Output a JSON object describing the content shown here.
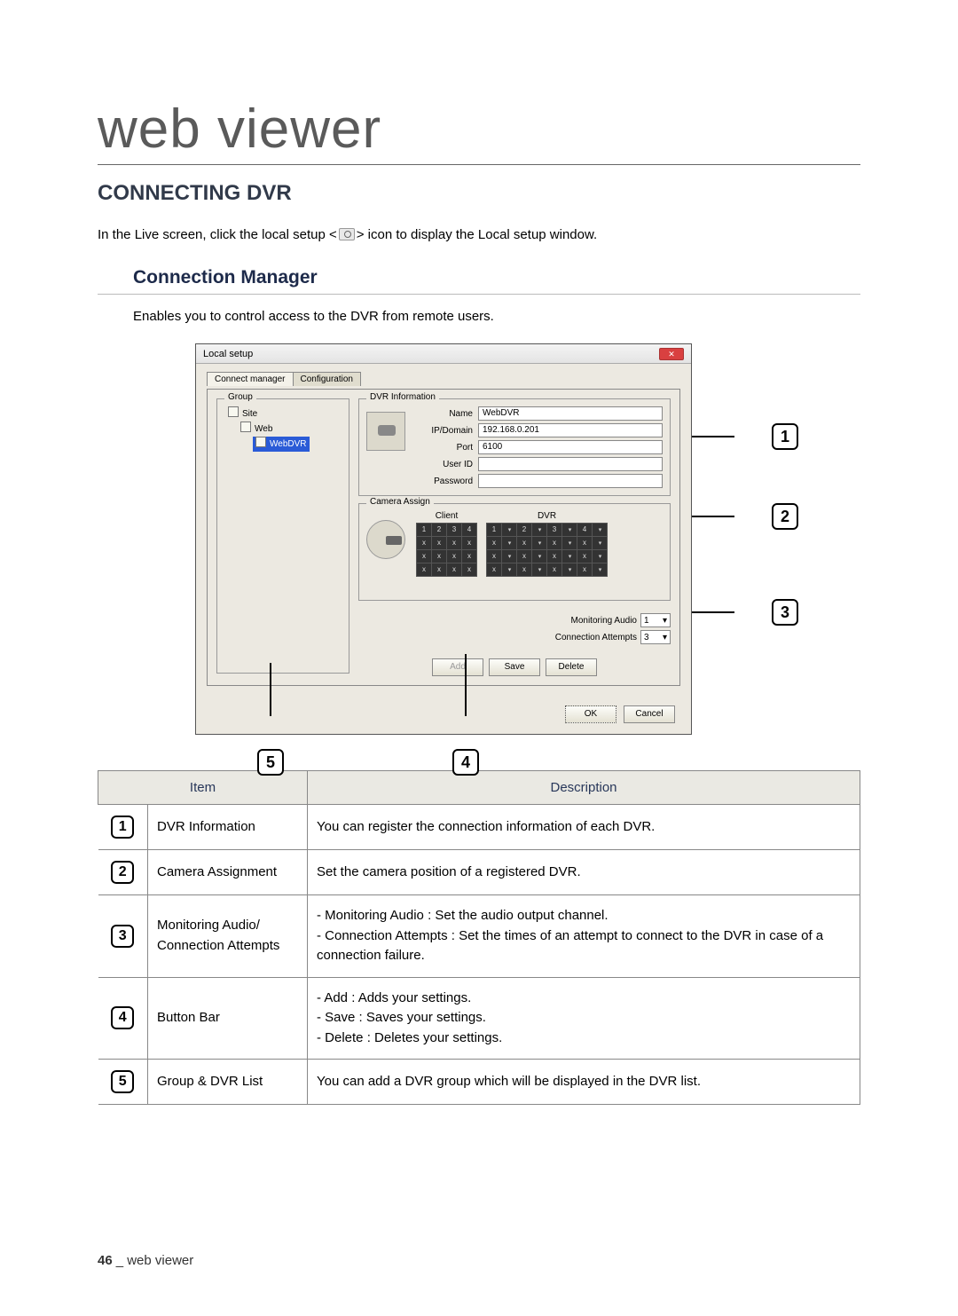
{
  "chapter": "web viewer",
  "section": "CONNECTING DVR",
  "intro_pre": "In the Live screen, click the local setup <",
  "intro_post": "> icon to display the Local setup window.",
  "subsection": "Connection Manager",
  "sub_desc": "Enables you to control access to the DVR from remote users.",
  "dialog": {
    "title": "Local setup",
    "tabs": [
      "Connect manager",
      "Configuration"
    ],
    "group_legend": "Group",
    "tree": {
      "root": "Site",
      "child": "Web",
      "leaf": "WebDVR"
    },
    "dvr_info": {
      "legend": "DVR Information",
      "name_label": "Name",
      "name_value": "WebDVR",
      "ip_label": "IP/Domain",
      "ip_value": "192.168.0.201",
      "port_label": "Port",
      "port_value": "6100",
      "user_label": "User ID",
      "user_value": "",
      "pw_label": "Password",
      "pw_value": ""
    },
    "cam": {
      "legend": "Camera Assign",
      "client_hdr": "Client",
      "dvr_hdr": "DVR"
    },
    "monitoring_label": "Monitoring Audio",
    "monitoring_value": "1",
    "attempts_label": "Connection Attempts",
    "attempts_value": "3",
    "btn_add": "Add",
    "btn_save": "Save",
    "btn_delete": "Delete",
    "btn_ok": "OK",
    "btn_cancel": "Cancel"
  },
  "table": {
    "head_item": "Item",
    "head_desc": "Description",
    "rows": [
      {
        "n": "1",
        "item": "DVR Information",
        "desc": "You can register the connection information of each DVR."
      },
      {
        "n": "2",
        "item": "Camera Assignment",
        "desc": "Set the camera position of a registered DVR."
      },
      {
        "n": "3",
        "item": "Monitoring Audio/\nConnection Attempts",
        "desc": "- Monitoring Audio : Set the audio output channel.\n- Connection Attempts : Set the times of an attempt to connect to the DVR in case of a\n  connection failure."
      },
      {
        "n": "4",
        "item": "Button Bar",
        "desc": "- Add : Adds your settings.\n- Save : Saves your settings.\n- Delete : Deletes your settings."
      },
      {
        "n": "5",
        "item": "Group & DVR List",
        "desc": "You can add a DVR group which will be displayed in the DVR list."
      }
    ]
  },
  "footer_page": "46",
  "footer_sep": "_",
  "footer_label": "web viewer",
  "colors": {
    "heading": "#313a4a",
    "table_header_bg": "#eae9e3",
    "border": "#888888"
  }
}
